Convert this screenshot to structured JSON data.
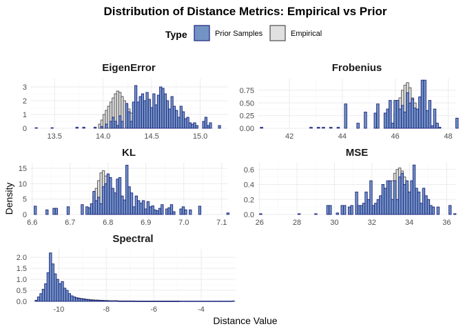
{
  "chart_data": {
    "type": "histogram",
    "title": "Distribution of Distance Metrics: Empirical vs Prior",
    "xlabel": "Distance Value",
    "ylabel": "Density",
    "legend": {
      "title": "Type",
      "placement": "top",
      "entries": [
        {
          "label": "Prior Samples",
          "fill": "#7393c4",
          "stroke": "#1a237e"
        },
        {
          "label": "Empirical",
          "fill": "#e0e0e0",
          "stroke": "#4d4d4d"
        }
      ]
    },
    "grid": true,
    "panels": [
      {
        "name": "EigenError",
        "xlim": [
          13.25,
          15.28
        ],
        "ylim": [
          0,
          3.6
        ],
        "xticks": [
          13.5,
          14.0,
          14.5,
          15.0
        ],
        "xtick_labels": [
          "13.5",
          "14.0",
          "14.5",
          "15.0"
        ],
        "yticks": [
          0,
          1,
          2,
          3
        ],
        "ytick_labels": [
          "0",
          "1",
          "2",
          "3"
        ],
        "bin_start": 13.3,
        "bin_width": 0.0233,
        "empirical": [
          0,
          0,
          0,
          0,
          0,
          0,
          0,
          0,
          0,
          0,
          0,
          0,
          0,
          0,
          0,
          0,
          0,
          0,
          0,
          0,
          0,
          0,
          0,
          0,
          0,
          0,
          0,
          0,
          0.3,
          0.6,
          1,
          1.3,
          1.6,
          1.9,
          2.2,
          2.5,
          2.7,
          2.6,
          2.3,
          2,
          1.7,
          1.4,
          1.1,
          0.9,
          0.8,
          0.7,
          0.6,
          0.5,
          0.4,
          0.3,
          0.2,
          0.1,
          0,
          0,
          0,
          0,
          0,
          0,
          0,
          0,
          0,
          0,
          0,
          0,
          0,
          0,
          0,
          0,
          0,
          0,
          0,
          0,
          0,
          0,
          0,
          0,
          0,
          0,
          0,
          0,
          0,
          0,
          0
        ],
        "prior": [
          0.04,
          0,
          0,
          0,
          0,
          0,
          0,
          0.04,
          0,
          0,
          0,
          0,
          0,
          0,
          0,
          0,
          0,
          0,
          0.08,
          0,
          0,
          0.08,
          0,
          0,
          0,
          0,
          0.08,
          0,
          0,
          0.13,
          0,
          0.3,
          0,
          0.5,
          0.8,
          0.5,
          0.2,
          0.9,
          0.5,
          0,
          1.8,
          1.2,
          0.5,
          1.9,
          3.1,
          1.9,
          2.3,
          2.5,
          2.0,
          2.6,
          2.1,
          1.5,
          2.5,
          1.7,
          2.4,
          3.0,
          2.9,
          2.5,
          2.0,
          1.4,
          2.3,
          1.6,
          1.3,
          0.8,
          1.6,
          1.2,
          0.7,
          0.8,
          0.4,
          0.3,
          0.4,
          0.2,
          0,
          0,
          0.5,
          0.8,
          0.2,
          0.4,
          0,
          0,
          0,
          0.2,
          0
        ]
      },
      {
        "name": "Frobenius",
        "xlim": [
          40.8,
          48.3
        ],
        "ylim": [
          0,
          0.98
        ],
        "xticks": [
          42,
          44,
          46,
          48
        ],
        "xtick_labels": [
          "42",
          "44",
          "46",
          "48"
        ],
        "yticks": [
          0,
          0.25,
          0.5,
          0.75
        ],
        "ytick_labels": [
          "0.00",
          "0.25",
          "0.50",
          "0.75"
        ],
        "bin_start": 40.9,
        "bin_width": 0.0935,
        "empirical": [
          0,
          0,
          0,
          0,
          0,
          0,
          0,
          0,
          0,
          0,
          0,
          0,
          0,
          0,
          0,
          0,
          0,
          0,
          0,
          0,
          0,
          0,
          0,
          0,
          0,
          0,
          0,
          0,
          0,
          0,
          0,
          0,
          0,
          0,
          0,
          0,
          0,
          0,
          0,
          0,
          0,
          0,
          0,
          0,
          0,
          0,
          0,
          0,
          0,
          0,
          0,
          0,
          0,
          0,
          0.3,
          0.45,
          0.6,
          0.75,
          0.85,
          0.9,
          0.8,
          0.6,
          0.5,
          0.35,
          0.2,
          0.1,
          0,
          0,
          0,
          0,
          0,
          0,
          0,
          0,
          0,
          0,
          0,
          0,
          0,
          0,
          0
        ],
        "prior": [
          0.02,
          0,
          0,
          0,
          0,
          0,
          0,
          0,
          0,
          0,
          0,
          0,
          0,
          0,
          0,
          0,
          0,
          0,
          0,
          0,
          0.02,
          0,
          0,
          0.02,
          0,
          0.02,
          0,
          0,
          0.02,
          0,
          0,
          0.02,
          0,
          0,
          0.48,
          0,
          0,
          0,
          0,
          0.1,
          0,
          0,
          0.32,
          0,
          0,
          0,
          0.3,
          0.48,
          0,
          0,
          0.3,
          0.38,
          0.55,
          0.1,
          0.55,
          0.55,
          0.38,
          0.45,
          0.32,
          0.7,
          0.5,
          0.58,
          0.4,
          0.38,
          0.62,
          0.95,
          0.95,
          0.35,
          0.55,
          0.05,
          0.38,
          0.1,
          0.02,
          0,
          0,
          0,
          0,
          0,
          0,
          0.2,
          0
        ]
      },
      {
        "name": "KL",
        "xlim": [
          6.595,
          7.115
        ],
        "ylim": [
          0,
          16.8
        ],
        "xticks": [
          6.6,
          6.7,
          6.8,
          6.9,
          7.0,
          7.1
        ],
        "xtick_labels": [
          "6.6",
          "6.7",
          "6.8",
          "6.9",
          "7.0",
          "7.1"
        ],
        "yticks": [
          0,
          5,
          10,
          15
        ],
        "ytick_labels": [
          "0",
          "5",
          "10",
          "15"
        ],
        "bin_start": 6.605,
        "bin_width": 0.0062,
        "empirical": [
          0,
          0,
          0,
          0,
          0,
          0,
          0,
          0,
          0,
          0,
          0,
          0,
          0,
          0,
          0,
          0,
          0,
          0,
          0,
          0,
          0,
          0,
          0,
          0,
          3.5,
          6,
          8.5,
          11,
          13.5,
          14.2,
          12.5,
          11,
          9.5,
          8,
          6.5,
          5,
          3.5,
          2,
          1,
          0,
          0,
          0,
          0,
          0,
          0,
          0,
          0,
          0,
          0,
          0,
          0,
          0,
          0,
          0,
          0,
          0,
          0,
          0,
          0,
          0,
          0,
          0,
          0,
          0,
          0,
          0,
          0,
          0,
          0,
          0,
          0,
          0,
          0,
          0,
          0,
          0,
          0,
          0,
          0,
          0,
          0,
          0
        ],
        "prior": [
          2.7,
          0,
          0,
          0,
          0,
          1.5,
          0,
          0,
          2,
          2,
          0,
          0,
          0,
          0,
          2.5,
          0,
          0,
          0,
          0,
          0,
          3.2,
          0,
          2.5,
          2.2,
          3.5,
          7.5,
          4.5,
          5.6,
          3.5,
          9,
          10,
          13.2,
          12,
          8.5,
          7,
          11.5,
          12,
          6,
          4.7,
          16,
          9,
          7,
          2.5,
          6,
          4.5,
          3.7,
          4.5,
          1.8,
          4.2,
          2.5,
          2.8,
          1.5,
          1.2,
          2,
          3.2,
          0,
          1.8,
          2.2,
          3.2,
          0.9,
          0,
          0,
          1.8,
          2.5,
          1.5,
          0,
          1.5,
          0,
          0,
          0,
          2.7,
          0,
          0,
          0,
          0,
          0,
          0,
          0,
          0,
          0,
          0,
          0,
          0.5,
          0
        ]
      },
      {
        "name": "MSE",
        "xlim": [
          25.9,
          36.5
        ],
        "ylim": [
          0,
          0.69
        ],
        "xticks": [
          26,
          28,
          30,
          32,
          34,
          36
        ],
        "xtick_labels": [
          "26",
          "28",
          "30",
          "32",
          "34",
          "36"
        ],
        "yticks": [
          0,
          0.2,
          0.4,
          0.6
        ],
        "ytick_labels": [
          "0.0",
          "0.2",
          "0.4",
          "0.6"
        ],
        "bin_start": 26.0,
        "bin_width": 0.128,
        "empirical": [
          0,
          0,
          0,
          0,
          0,
          0,
          0,
          0,
          0,
          0,
          0,
          0,
          0,
          0,
          0,
          0,
          0,
          0,
          0,
          0,
          0,
          0,
          0,
          0,
          0,
          0,
          0,
          0,
          0,
          0,
          0,
          0,
          0,
          0,
          0,
          0,
          0,
          0,
          0,
          0,
          0,
          0,
          0,
          0,
          0,
          0,
          0,
          0,
          0,
          0,
          0,
          0,
          0,
          0.25,
          0.35,
          0.45,
          0.55,
          0.6,
          0.62,
          0.58,
          0.5,
          0.4,
          0.3,
          0.2,
          0.1,
          0,
          0,
          0,
          0,
          0,
          0,
          0,
          0,
          0,
          0,
          0,
          0,
          0,
          0,
          0,
          0,
          0
        ],
        "prior": [
          0.01,
          0,
          0,
          0,
          0,
          0,
          0,
          0,
          0,
          0,
          0,
          0,
          0,
          0,
          0,
          0,
          0.01,
          0,
          0,
          0,
          0,
          0,
          0,
          0.01,
          0,
          0,
          0,
          0,
          0.12,
          0.12,
          0,
          0,
          0.02,
          0,
          0.12,
          0.12,
          0,
          0.1,
          0.12,
          0,
          0.3,
          0.12,
          0.12,
          0.15,
          0.3,
          0.2,
          0.45,
          0.12,
          0.15,
          0.2,
          0.25,
          0.4,
          0.35,
          0.45,
          0.45,
          0.2,
          0.45,
          0.2,
          0.5,
          0.55,
          0.4,
          0.45,
          0.3,
          0.45,
          0.66,
          0.35,
          0.3,
          0.15,
          0.35,
          0.25,
          0.2,
          0.12,
          0.1,
          0,
          0.1,
          0,
          0,
          0,
          0,
          0.12,
          0,
          0.01
        ]
      },
      {
        "name": "Spectral",
        "xlim": [
          -11.2,
          -2.55
        ],
        "ylim": [
          0,
          2.38
        ],
        "xticks": [
          -10,
          -8,
          -6,
          -4
        ],
        "xtick_labels": [
          "-10",
          "-8",
          "-6",
          "-4"
        ],
        "yticks": [
          0,
          0.5,
          1,
          1.5,
          2
        ],
        "ytick_labels": [
          "0.0",
          "0.5",
          "1.0",
          "1.5",
          "2.0"
        ],
        "bin_start": -11.0,
        "bin_width": 0.1,
        "empirical": [
          0.03,
          0.05,
          0.1,
          0.2,
          0.35,
          0.55,
          0.8,
          0.95,
          0.85,
          0.7,
          0.55,
          0.45,
          0.4,
          0.35,
          0.3,
          0.25,
          0.2,
          0.17,
          0.15,
          0.13,
          0.12,
          0.1,
          0.09,
          0.08,
          0.07,
          0.06,
          0.06,
          0.05,
          0.05,
          0.04,
          0.04,
          0.03,
          0.03,
          0.03,
          0.03,
          0.02,
          0.02,
          0.02,
          0.02,
          0.02,
          0.02,
          0.02,
          0.01,
          0.01,
          0.01,
          0.01,
          0.01,
          0.01,
          0.01,
          0.01,
          0.01,
          0.01,
          0.01,
          0.01,
          0.01,
          0.01,
          0.01,
          0.01,
          0.01,
          0.01,
          0.01,
          0,
          0,
          0,
          0,
          0,
          0,
          0,
          0,
          0,
          0,
          0,
          0,
          0,
          0,
          0,
          0,
          0,
          0,
          0,
          0,
          0,
          0,
          0
        ],
        "prior": [
          0.05,
          0.2,
          0.35,
          0.55,
          0.8,
          1.3,
          2.2,
          1.7,
          1.25,
          1.0,
          0.8,
          0.9,
          0.6,
          0.5,
          0.35,
          0.25,
          0.2,
          0.15,
          0.13,
          0.12,
          0.1,
          0.08,
          0.07,
          0.05,
          0.05,
          0.04,
          0.04,
          0.03,
          0.03,
          0.02,
          0.02,
          0.02,
          0.02,
          0.02,
          0.02,
          0.01,
          0.01,
          0.01,
          0.01,
          0.01,
          0.01,
          0.01,
          0.01,
          0.01,
          0.01,
          0.01,
          0.01,
          0.01,
          0.01,
          0.01,
          0.01,
          0.01,
          0.01,
          0.01,
          0.01,
          0.01,
          0.01,
          0.01,
          0.01,
          0.01,
          0.01,
          0.01,
          0.01,
          0.01,
          0.01,
          0.01,
          0.01,
          0.01,
          0.01,
          0.01,
          0.01,
          0.01,
          0.01,
          0.01,
          0.01,
          0.01,
          0.01,
          0.01,
          0.01,
          0.01,
          0.01,
          0.01,
          0.01,
          0.02
        ]
      }
    ]
  }
}
